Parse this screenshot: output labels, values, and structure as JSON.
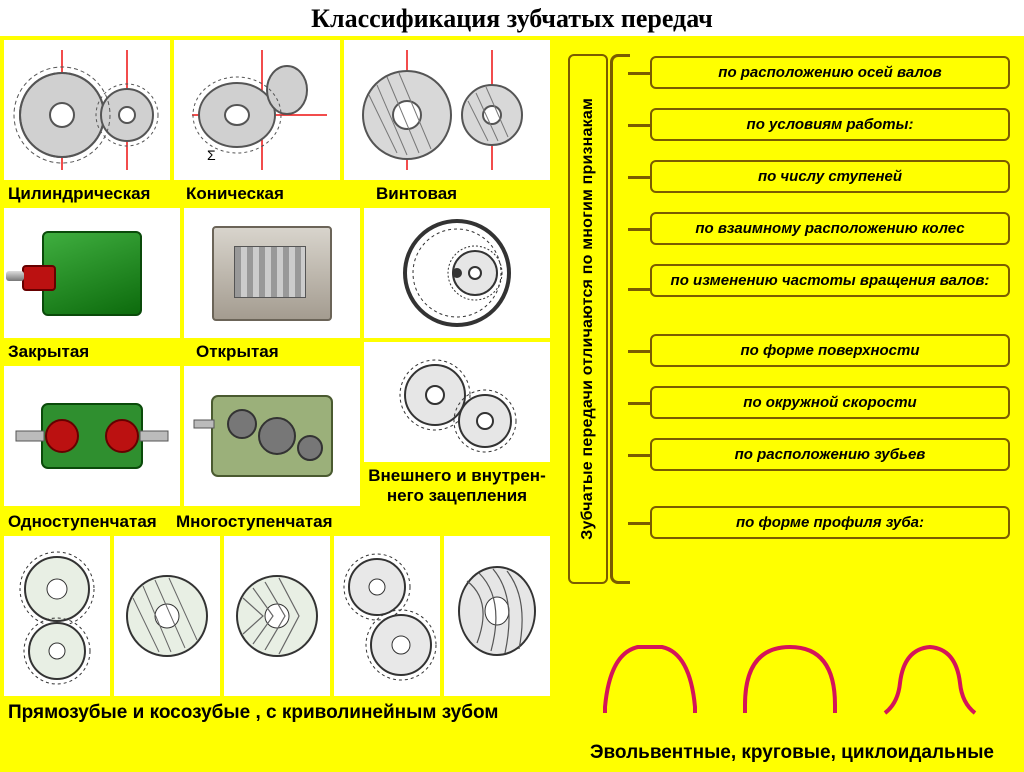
{
  "title": "Классификация зубчатых передач",
  "colors": {
    "bg_yellow": "#ffff00",
    "box_border": "#7a5c00",
    "profile_stroke": "#d4145a",
    "gear_stroke": "#555555",
    "gear_fill": "#cfcfcf",
    "axis_red": "#e11"
  },
  "left": {
    "row1": {
      "items": [
        {
          "label": "Цилиндрическая",
          "icon": "gear-pair-cylindrical"
        },
        {
          "label": "Коническая",
          "icon": "gear-pair-bevel"
        },
        {
          "label": "Винтовая",
          "icon": "gear-pair-helical"
        }
      ]
    },
    "row2": {
      "items": [
        {
          "label": "Закрытая",
          "icon": "gearbox-closed"
        },
        {
          "label": "Открытая",
          "icon": "gearbox-open"
        },
        {
          "label": "",
          "icon": "gear-internal"
        }
      ]
    },
    "row3": {
      "items": [
        {
          "label": "Одноступенчатая",
          "icon": "gearbox-single"
        },
        {
          "label": "Многоступенчатая",
          "icon": "gearbox-multi"
        }
      ],
      "right_caption": "Внешнего и внутрен-\nнего зацепления"
    },
    "row4": {
      "caption": "Прямозубые и косозубые , с криволинейным зубом",
      "icons": [
        "spur-gears",
        "helical-gears",
        "herringbone-gears",
        "spur-pair",
        "spiral-bevel"
      ]
    }
  },
  "right": {
    "vert_label": "Зубчатые передачи отличаются по многим признакам",
    "categories": [
      "по расположению осей валов",
      "по условиям работы:",
      "по числу ступеней",
      "по взаимному расположению колес",
      "по изменению частоты вращения валов:",
      "по форме поверхности",
      "по окружной скорости",
      "по расположению зубьев",
      "по форме профиля зуба:"
    ],
    "category_fontsize": 15,
    "profiles": [
      "involute",
      "circular",
      "cycloidal"
    ],
    "profiles_caption": "Эвольвентные, круговые, циклоидальные"
  }
}
